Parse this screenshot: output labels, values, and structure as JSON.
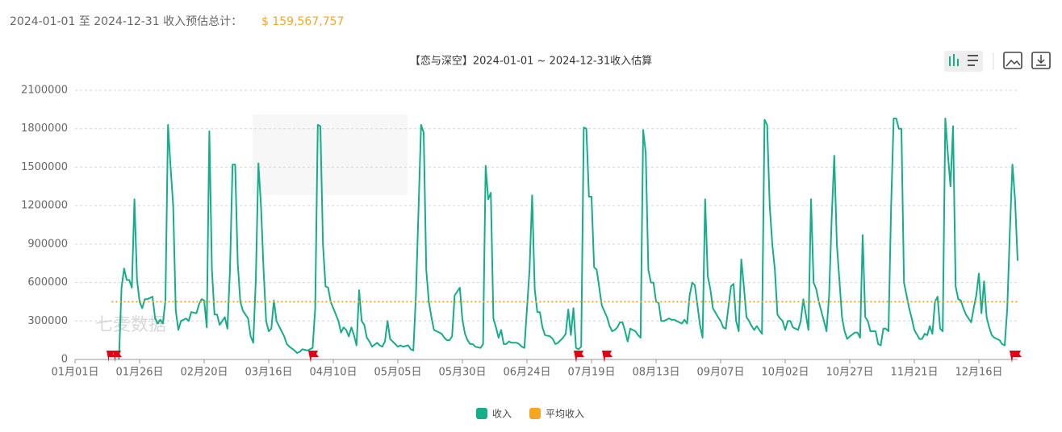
{
  "header": {
    "label": "2024-01-01 至 2024-12-31 收入预估总计：",
    "total": "$ 159,567,757"
  },
  "chart_data": {
    "type": "line",
    "title": "【恋与深空】2024-01-01 ~ 2024-12-31收入估算",
    "watermark": "七麦数据",
    "xlim": [
      "01月01日",
      "12月31日"
    ],
    "xticks": [
      "01月01日",
      "01月26日",
      "02月20日",
      "03月16日",
      "04月10日",
      "05月05日",
      "05月30日",
      "06月24日",
      "07月19日",
      "08月13日",
      "09月07日",
      "10月02日",
      "10月27日",
      "11月21日",
      "12月16日"
    ],
    "ylim": [
      0,
      2100000
    ],
    "yticks": [
      0,
      300000,
      600000,
      900000,
      1200000,
      1500000,
      1800000,
      2100000
    ],
    "grid": true,
    "x": [
      "01月18日",
      "01月19日",
      "01月20日",
      "01月21日",
      "01月22日",
      "01月23日",
      "01月24日",
      "01月25日",
      "01月26日",
      "01月27日",
      "01月28日",
      "01月29日",
      "01月30日",
      "01月31日",
      "02月01日",
      "02月02日",
      "02月03日",
      "02月04日",
      "02月05日",
      "02月06日",
      "02月07日",
      "02月08日",
      "02月09日",
      "02月10日",
      "02月11日",
      "02月13日",
      "02月14日",
      "02月15日",
      "02月17日",
      "02月18日",
      "02月19日",
      "02月20日",
      "02月21日",
      "02月22日",
      "02月23日",
      "02月24日",
      "02月25日",
      "02月26日",
      "02月27日",
      "02月28日",
      "02月29日",
      "03月01日",
      "03月02日",
      "03月03日",
      "03月04日",
      "03月05日",
      "03月06日",
      "03月08日",
      "03月09日",
      "03月10日",
      "03月11日",
      "03月12日",
      "03月13日",
      "03月14日",
      "03月15日",
      "03月16日",
      "03月17日",
      "03月18日",
      "03月19日",
      "03月21日",
      "03月22日",
      "03月23日",
      "03月24日",
      "03月26日",
      "03月27日",
      "03月28日",
      "03月29日",
      "03月31日",
      "04月01日",
      "04月02日",
      "04月03日",
      "04月04日",
      "04月05日",
      "04月06日",
      "04月07日",
      "04月08日",
      "04月09日",
      "04月10日",
      "04月12日",
      "04月13日",
      "04月14日",
      "04月15日",
      "04月16日",
      "04月17日",
      "04月18日",
      "04月19日",
      "04月20日",
      "04月21日",
      "04月22日",
      "04月23日",
      "04月24日",
      "04月25日",
      "04月27日",
      "04月28日",
      "04月29日",
      "04月30日",
      "05月01日",
      "05月02日",
      "05月04日",
      "05月05日",
      "05月06日",
      "05月07日",
      "05月09日",
      "05月10日",
      "05月11日",
      "05月12日",
      "05月14日",
      "05月15日",
      "05月16日",
      "05月17日",
      "05月18日",
      "05月19日",
      "05月20日",
      "05月22日",
      "05月23日",
      "05月24日",
      "05月25日",
      "05月26日",
      "05月27日",
      "05月29日",
      "05月30日",
      "05月31日",
      "06月01日",
      "06月02日",
      "06月03日",
      "06月04日",
      "06月06日",
      "06月07日",
      "06月08日",
      "06月09日",
      "06月10日",
      "06月11日",
      "06月12日",
      "06月13日",
      "06月14日",
      "06月15日",
      "06月16日",
      "06月17日",
      "06月18日",
      "06月20日",
      "06月21日",
      "06月22日",
      "06月23日",
      "06月25日",
      "06月26日",
      "06月27日",
      "06月28日",
      "06月29日",
      "06月30日",
      "07月01日",
      "07月03日",
      "07月04日",
      "07月05日",
      "07月06日",
      "07月08日",
      "07月09日",
      "07月10日",
      "07月11日",
      "07月12日",
      "07月13日",
      "07月14日",
      "07月15日",
      "07月16日",
      "07月17日",
      "07月18日",
      "07月19日",
      "07月20日",
      "07月21日",
      "07月22日",
      "07月23日",
      "07月25日",
      "07月26日",
      "07月27日",
      "07月28日",
      "07月29日",
      "07月30日",
      "07月31日",
      "08月01日",
      "08月02日",
      "08月03日",
      "08月05日",
      "08月06日",
      "08月07日",
      "08月08日",
      "08月09日",
      "08月10日",
      "08月11日",
      "08月12日",
      "08月13日",
      "08月14日",
      "08月15日",
      "08月16日",
      "08月18日",
      "08月19日",
      "08月20日",
      "08月21日",
      "08月23日",
      "08月24日",
      "08月25日",
      "08月26日",
      "08月27日",
      "08月28日",
      "08月30日",
      "08月31日",
      "09月01日",
      "09月02日",
      "09月03日",
      "09月04日",
      "09月06日",
      "09月07日",
      "09月08日",
      "09月09日",
      "09月11日",
      "09月12日",
      "09月13日",
      "09月14日",
      "09月15日",
      "09月16日",
      "09月17日",
      "09月18日",
      "09月19日",
      "09月20日",
      "09月21日",
      "09月23日",
      "09月24日",
      "09月25日",
      "09月26日",
      "09月27日",
      "09月28日",
      "09月29日",
      "09月30日",
      "10月01日",
      "10月02日",
      "10月03日",
      "10月04日",
      "10月05日",
      "10月07日",
      "10月08日",
      "10月09日",
      "10月10日",
      "10月11日",
      "10月12日",
      "10月13日",
      "10月14日",
      "10月15日",
      "10月17日",
      "10月18日",
      "10月19日",
      "10月20日",
      "10月21日",
      "10月22日",
      "10月24日",
      "10月25日",
      "10月26日",
      "10月27日",
      "10月29日",
      "10月30日",
      "10月31日",
      "11月01日",
      "11月02日",
      "11月03日",
      "11月04日",
      "11月06日",
      "11月07日",
      "11月08日",
      "11月09日",
      "11月10日",
      "11月11日",
      "11月12日",
      "11月13日",
      "11月14日",
      "11月15日",
      "11月16日",
      "11月17日",
      "11月18日",
      "11月19日",
      "11月20日",
      "11月21日",
      "11月23日",
      "11月24日",
      "11月25日",
      "11月26日",
      "11月27日",
      "11月28日",
      "11月29日",
      "11月30日",
      "12月01日",
      "12月02日",
      "12月03日",
      "12月04日",
      "12月05日",
      "12月06日",
      "12月07日",
      "12月08日",
      "12月09日",
      "12月10日",
      "12月11日",
      "12月13日",
      "12月14日",
      "12月15日",
      "12月16日",
      "12月17日",
      "12月18日",
      "12月19日",
      "12月20日",
      "12月21日",
      "12月22日",
      "12月24日",
      "12月25日",
      "12月26日",
      "12月27日",
      "12月28日",
      "12月29日",
      "12月30日",
      "12月31日"
    ],
    "series": [
      {
        "name": "收入",
        "color": "#16ad8a",
        "values": [
          0,
          560000,
          710000,
          620000,
          620000,
          560000,
          1250000,
          620000,
          450000,
          400000,
          470000,
          470000,
          480000,
          490000,
          320000,
          280000,
          310000,
          280000,
          460000,
          1830000,
          1500000,
          1200000,
          380000,
          230000,
          300000,
          320000,
          300000,
          370000,
          360000,
          430000,
          470000,
          460000,
          250000,
          1780000,
          700000,
          350000,
          350000,
          270000,
          300000,
          330000,
          240000,
          700000,
          1520000,
          1520000,
          750000,
          450000,
          380000,
          320000,
          180000,
          130000,
          620000,
          1530000,
          1200000,
          700000,
          300000,
          220000,
          240000,
          460000,
          300000,
          220000,
          180000,
          120000,
          100000,
          70000,
          50000,
          60000,
          80000,
          70000,
          80000,
          90000,
          400000,
          1830000,
          1820000,
          900000,
          570000,
          560000,
          450000,
          400000,
          300000,
          210000,
          250000,
          230000,
          180000,
          250000,
          190000,
          110000,
          540000,
          300000,
          270000,
          170000,
          140000,
          100000,
          130000,
          110000,
          100000,
          140000,
          300000,
          160000,
          120000,
          100000,
          110000,
          100000,
          110000,
          80000,
          70000,
          500000,
          1830000,
          1770000,
          700000,
          450000,
          330000,
          230000,
          220000,
          200000,
          170000,
          150000,
          150000,
          180000,
          500000,
          560000,
          310000,
          200000,
          150000,
          120000,
          120000,
          100000,
          90000,
          120000,
          1510000,
          1250000,
          1300000,
          320000,
          250000,
          170000,
          230000,
          120000,
          120000,
          140000,
          130000,
          130000,
          120000,
          100000,
          90000,
          700000,
          1280000,
          550000,
          370000,
          370000,
          250000,
          190000,
          180000,
          160000,
          120000,
          130000,
          170000,
          200000,
          390000,
          190000,
          400000,
          90000,
          80000,
          100000,
          1810000,
          1800000,
          1270000,
          1270000,
          720000,
          700000,
          560000,
          420000,
          330000,
          260000,
          220000,
          230000,
          250000,
          290000,
          290000,
          220000,
          140000,
          240000,
          220000,
          190000,
          170000,
          1790000,
          1610000,
          700000,
          600000,
          600000,
          450000,
          440000,
          300000,
          300000,
          320000,
          310000,
          310000,
          300000,
          280000,
          310000,
          280000,
          500000,
          600000,
          580000,
          270000,
          170000,
          1250000,
          650000,
          550000,
          400000,
          330000,
          300000,
          250000,
          240000,
          570000,
          590000,
          300000,
          220000,
          780000,
          570000,
          330000,
          300000,
          260000,
          230000,
          260000,
          200000,
          1870000,
          1830000,
          1200000,
          900000,
          700000,
          350000,
          320000,
          300000,
          230000,
          300000,
          300000,
          250000,
          230000,
          300000,
          470000,
          350000,
          230000,
          1250000,
          600000,
          550000,
          450000,
          300000,
          220000,
          500000,
          1100000,
          1590000,
          900000,
          330000,
          220000,
          160000,
          180000,
          210000,
          210000,
          170000,
          970000,
          330000,
          300000,
          220000,
          220000,
          120000,
          110000,
          240000,
          240000,
          220000,
          1180000,
          1880000,
          1880000,
          1800000,
          1800000,
          600000,
          500000,
          400000,
          320000,
          230000,
          160000,
          160000,
          200000,
          190000,
          260000,
          200000,
          450000,
          490000,
          240000,
          220000,
          1880000,
          1600000,
          1350000,
          1820000,
          570000,
          470000,
          460000,
          400000,
          350000,
          290000,
          400000,
          500000,
          670000,
          360000,
          610000,
          330000,
          250000,
          190000,
          170000,
          150000,
          120000,
          110000,
          400000,
          1000000,
          1520000,
          1250000,
          770000
        ]
      },
      {
        "name": "平均收入",
        "color": "#f5a623",
        "value": 450000
      }
    ]
  }
}
